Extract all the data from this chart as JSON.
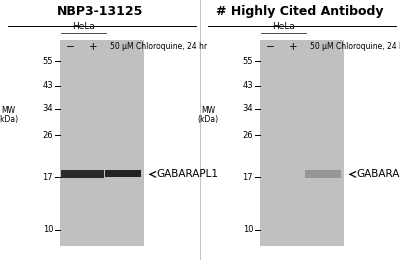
{
  "title_left": "NBP3-13125",
  "title_right": "# Highly Cited Antibody",
  "cell_line": "HeLa",
  "treatment_label": "50 μM Chloroquine, 24 hr",
  "mw_marks": [
    55,
    43,
    34,
    26,
    17,
    10
  ],
  "band_label": "GABARAPL1",
  "band_mw": 17.5,
  "bg_color": "#c0c0c0",
  "band_color_dark": "#1a1a1a",
  "band_color_light": "#888888",
  "fig_bg": "#ffffff",
  "y_min": 8.5,
  "y_max": 68,
  "title_fontsize": 9,
  "label_fontsize": 6.5,
  "tick_fontsize": 6.5,
  "annotation_fontsize": 7.5
}
